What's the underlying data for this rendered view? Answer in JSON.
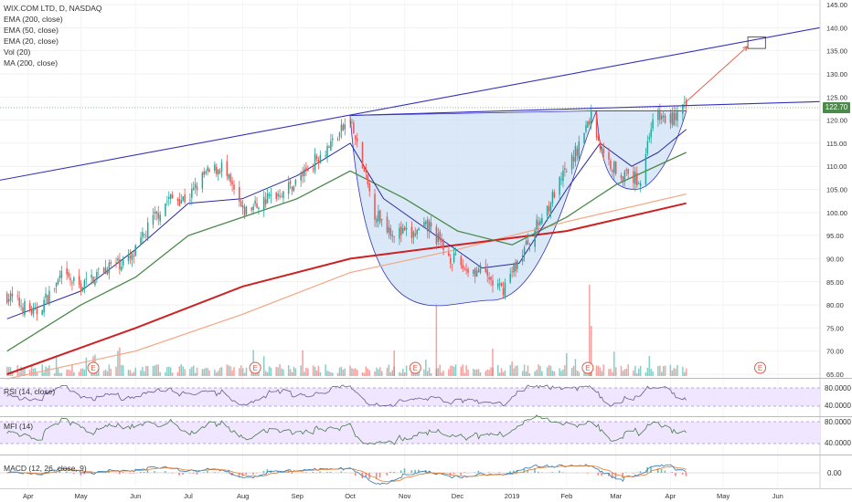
{
  "header": {
    "symbol_title": "WIX.COM LTD, D, NASDAQ",
    "indicators": [
      "EMA (200, close)",
      "EMA (50, close)",
      "EMA (20, close)",
      "Vol (20)",
      "MA (200, close)"
    ]
  },
  "panes": {
    "rsi_label": "RSI (14, close)",
    "mfi_label": "MFI (14)",
    "macd_label": "MACD (12, 26, close, 9)"
  },
  "last_price": "122.70",
  "colors": {
    "up": "#26a69a",
    "down": "#ef5350",
    "ema200": "#cc2222",
    "ema50": "#f4a582",
    "ema20": "#4a8a4a",
    "ma_blue": "#2a2aa0",
    "trend": "#3333bb",
    "cup_fill": "#cfe0f6",
    "oscillator_bg": "#f0e6ff",
    "price_badge": "#4a8a4a",
    "earnings_marker": "#e05a4a"
  },
  "earnings_marker_label": "E",
  "chart_data": {
    "type": "candlestick",
    "y_axis": {
      "min": 65,
      "max": 145,
      "ticks": [
        "145.00",
        "140.00",
        "135.00",
        "130.00",
        "125.00",
        "120.00",
        "115.00",
        "110.00",
        "105.00",
        "100.00",
        "95.00",
        "90.00",
        "85.00",
        "80.00",
        "75.00",
        "70.00",
        "65.00"
      ]
    },
    "x_axis": {
      "labels": [
        "Apr",
        "May",
        "Jun",
        "Jul",
        "Aug",
        "Sep",
        "Oct",
        "Nov",
        "Dec",
        "2019",
        "Feb",
        "Mar",
        "Apr",
        "May",
        "Jun"
      ]
    },
    "rsi_ticks": [
      "80.0000",
      "40.0000"
    ],
    "mfi_ticks": [
      "80.0000",
      "40.0000"
    ],
    "macd_ticks": [
      "0.00"
    ],
    "price_path": [
      [
        "2018-03-20",
        82
      ],
      [
        "2018-04-05",
        78
      ],
      [
        "2018-04-20",
        86
      ],
      [
        "2018-05-01",
        84
      ],
      [
        "2018-05-15",
        88
      ],
      [
        "2018-05-30",
        90
      ],
      [
        "2018-06-10",
        98
      ],
      [
        "2018-06-20",
        103
      ],
      [
        "2018-07-01",
        103
      ],
      [
        "2018-07-10",
        108
      ],
      [
        "2018-07-20",
        110
      ],
      [
        "2018-08-01",
        100
      ],
      [
        "2018-08-15",
        103
      ],
      [
        "2018-08-30",
        106
      ],
      [
        "2018-09-10",
        111
      ],
      [
        "2018-09-20",
        115
      ],
      [
        "2018-10-01",
        120
      ],
      [
        "2018-10-15",
        100
      ],
      [
        "2018-10-25",
        96
      ],
      [
        "2018-11-05",
        95
      ],
      [
        "2018-11-15",
        97
      ],
      [
        "2018-11-25",
        91
      ],
      [
        "2018-12-05",
        88
      ],
      [
        "2018-12-15",
        87
      ],
      [
        "2018-12-26",
        83
      ],
      [
        "2019-01-05",
        90
      ],
      [
        "2019-01-15",
        97
      ],
      [
        "2019-01-25",
        104
      ],
      [
        "2019-02-05",
        112
      ],
      [
        "2019-02-15",
        121
      ],
      [
        "2019-02-22",
        112
      ],
      [
        "2019-03-05",
        108
      ],
      [
        "2019-03-15",
        107
      ],
      [
        "2019-03-22",
        121
      ],
      [
        "2019-04-01",
        120
      ],
      [
        "2019-04-10",
        122.7
      ]
    ],
    "ema20_path": [
      [
        "2018-03-20",
        77
      ],
      [
        "2018-05-01",
        83
      ],
      [
        "2018-06-01",
        92
      ],
      [
        "2018-07-01",
        102
      ],
      [
        "2018-08-01",
        103
      ],
      [
        "2018-09-01",
        108
      ],
      [
        "2018-10-01",
        115
      ],
      [
        "2018-10-20",
        103
      ],
      [
        "2018-11-15",
        96
      ],
      [
        "2018-12-15",
        88
      ],
      [
        "2019-01-05",
        89
      ],
      [
        "2019-02-01",
        105
      ],
      [
        "2019-02-20",
        115
      ],
      [
        "2019-03-10",
        110
      ],
      [
        "2019-03-25",
        113
      ],
      [
        "2019-04-10",
        118
      ]
    ],
    "ema50_path": [
      [
        "2018-03-20",
        70
      ],
      [
        "2018-05-01",
        80
      ],
      [
        "2018-06-01",
        86
      ],
      [
        "2018-07-01",
        95
      ],
      [
        "2018-08-01",
        99
      ],
      [
        "2018-09-01",
        103
      ],
      [
        "2018-10-01",
        109
      ],
      [
        "2018-11-01",
        103
      ],
      [
        "2018-12-01",
        96
      ],
      [
        "2019-01-01",
        93
      ],
      [
        "2019-02-01",
        99
      ],
      [
        "2019-03-01",
        106
      ],
      [
        "2019-04-10",
        113
      ]
    ],
    "ema200_path": [
      [
        "2018-03-20",
        65
      ],
      [
        "2018-06-01",
        75
      ],
      [
        "2018-08-01",
        84
      ],
      [
        "2018-10-01",
        90
      ],
      [
        "2018-12-01",
        93
      ],
      [
        "2019-02-01",
        96
      ],
      [
        "2019-04-10",
        102
      ]
    ],
    "ma200_path": [
      [
        "2018-03-20",
        64
      ],
      [
        "2018-06-01",
        70
      ],
      [
        "2018-08-01",
        78
      ],
      [
        "2018-10-01",
        87
      ],
      [
        "2018-12-01",
        92
      ],
      [
        "2019-02-01",
        98
      ],
      [
        "2019-04-10",
        104
      ]
    ],
    "trend_lines": {
      "upper": [
        [
          "2018-03-16",
          107
        ],
        [
          "2019-06-25",
          140
        ]
      ],
      "neck": [
        [
          "2018-10-01",
          121
        ],
        [
          "2019-06-25",
          124
        ]
      ]
    },
    "cup": {
      "start": [
        "2018-10-01",
        121
      ],
      "bottom": [
        "2018-12-20",
        81
      ],
      "end": [
        "2019-02-18",
        122
      ]
    },
    "handle": {
      "start": [
        "2019-02-18",
        122
      ],
      "bottom": [
        "2019-03-12",
        105
      ],
      "end": [
        "2019-04-10",
        122
      ]
    },
    "target": {
      "box_top": 138,
      "box_bottom": 135.5,
      "box_from": "2019-05-15",
      "box_to": "2019-05-25",
      "arrow_from": [
        "2019-04-10",
        124
      ],
      "arrow_to": [
        "2019-05-15",
        136
      ]
    },
    "earnings_dates": [
      "2018-05-08",
      "2018-08-08",
      "2018-11-07",
      "2019-02-13",
      "2019-05-22"
    ]
  }
}
